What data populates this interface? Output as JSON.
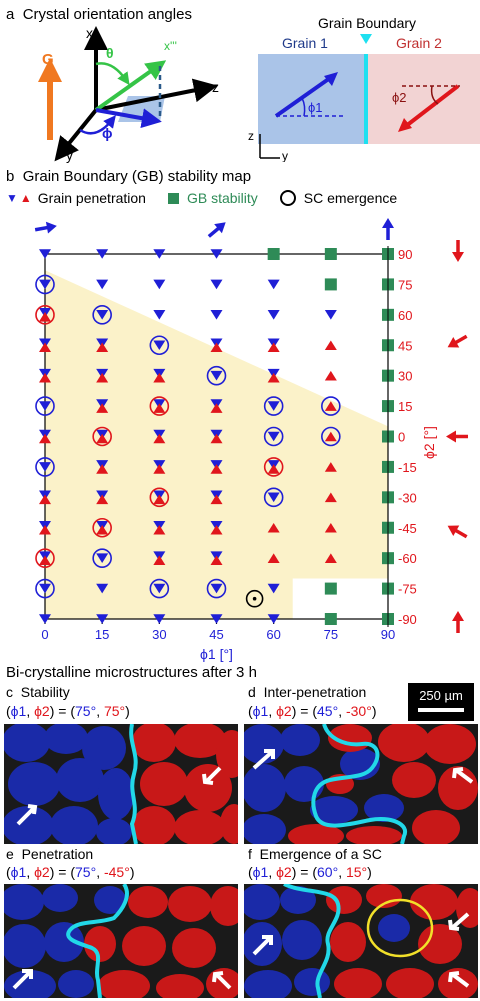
{
  "panel_a": {
    "letter": "a",
    "title": "Crystal orientation angles",
    "axes": {
      "x": "x",
      "y": "y",
      "z": "z",
      "xppp": "x'''",
      "theta": "θ",
      "phi": "ϕ",
      "gravity": "G"
    },
    "gb_title": "Grain Boundary",
    "grain1": "Grain 1",
    "grain2": "Grain 2",
    "phi1": "ϕ1",
    "phi2": "ϕ2",
    "inset_z": "z",
    "inset_y": "y"
  },
  "panel_b": {
    "letter": "b",
    "title": "Grain Boundary (GB) stability map",
    "legend": {
      "penetration": "Grain penetration",
      "stability": "GB stability",
      "sc": "SC emergence"
    }
  },
  "chart_data": {
    "type": "scatter",
    "xlabel": "ϕ1 [°]",
    "ylabel": "ϕ2 [°]",
    "x_ticks": [
      0,
      15,
      30,
      45,
      60,
      75,
      90
    ],
    "y_ticks": [
      90,
      75,
      60,
      45,
      30,
      15,
      0,
      -15,
      -30,
      -45,
      -60,
      -75,
      -90
    ],
    "xlim": [
      0,
      90
    ],
    "ylim": [
      -90,
      90
    ],
    "colors": {
      "blue": "#1f1fd6",
      "red": "#e0161c",
      "green": "#2e8b57",
      "shade": "#fbf2c9",
      "axis2": "#e0161c",
      "axis1": "#1f1fd6"
    },
    "grid": {
      "0": {
        "90": "B",
        "75": "Bc",
        "60": "Rc",
        "45": "X",
        "30": "X",
        "15": "Bc",
        "0": "X",
        "-15": "Bc",
        "-30": "X",
        "-45": "X",
        "-60": "Rc",
        "-75": "Bc",
        "-90": "B"
      },
      "15": {
        "90": "B",
        "75": "B",
        "60": "Bc",
        "45": "X",
        "30": "X",
        "15": "X",
        "0": "Rc",
        "-15": "X",
        "-30": "X",
        "-45": "Rc",
        "-60": "Bc",
        "-75": "B",
        "-90": "B"
      },
      "30": {
        "90": "B",
        "75": "B",
        "60": "B",
        "45": "Bc",
        "30": "X",
        "15": "Rc",
        "0": "X",
        "-15": "X",
        "-30": "Rc",
        "-45": "X",
        "-60": "X",
        "-75": "Bc",
        "-90": "B"
      },
      "45": {
        "90": "B",
        "75": "B",
        "60": "B",
        "45": "X",
        "30": "Bc",
        "15": "X",
        "0": "X",
        "-15": "X",
        "-30": "X",
        "-45": "X",
        "-60": "X",
        "-75": "Bc",
        "-90": "B"
      },
      "60": {
        "90": "G",
        "75": "B",
        "60": "B",
        "45": "X",
        "30": "X",
        "15": "Bc",
        "0": "Bc",
        "-15": "Rc",
        "-30": "Bc",
        "-45": "R",
        "-60": "R",
        "-75": "B",
        "-90": "B"
      },
      "75": {
        "90": "G",
        "75": "G",
        "60": "B",
        "45": "R",
        "30": "R",
        "15": "Rc2",
        "0": "Rc2",
        "-15": "R",
        "-30": "R",
        "-45": "R",
        "-60": "R",
        "-75": "G",
        "-90": "G"
      },
      "90": {
        "90": "G",
        "75": "G",
        "60": "G",
        "45": "G",
        "30": "G",
        "15": "G",
        "0": "G",
        "-15": "G",
        "-30": "G",
        "-45": "G",
        "-60": "G",
        "-75": "G",
        "-90": "G"
      }
    },
    "sc_marker": {
      "x": 55,
      "y": -80
    }
  },
  "panel_bottom": {
    "heading": "Bi-crystalline microstructures after 3 h",
    "scalebar": "250 µm",
    "c": {
      "letter": "c",
      "title": "Stability",
      "phi_prefix": "(",
      "phi1": "ϕ1",
      "comma": ", ",
      "phi2": "ϕ2",
      "eq": ") = (",
      "v1": "75°",
      "v2": "75°",
      "end": ")"
    },
    "d": {
      "letter": "d",
      "title": "Inter-penetration",
      "phi_prefix": "(",
      "phi1": "ϕ1",
      "comma": ", ",
      "phi2": "ϕ2",
      "eq": ") = (",
      "v1": "45°",
      "v2": "-30°",
      "end": ")"
    },
    "e": {
      "letter": "e",
      "title": "Penetration",
      "phi_prefix": "(",
      "phi1": "ϕ1",
      "comma": ", ",
      "phi2": "ϕ2",
      "eq": ") = (",
      "v1": "75°",
      "v2": "-45°",
      "end": ")"
    },
    "f": {
      "letter": "f",
      "title": "Emergence of a SC",
      "phi_prefix": "(",
      "phi1": "ϕ1",
      "comma": ", ",
      "phi2": "ϕ2",
      "eq": ") = (",
      "v1": "60°",
      "v2": "15°",
      "end": ")"
    }
  }
}
